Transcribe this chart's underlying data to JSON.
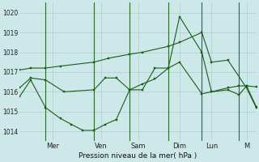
{
  "bg_color": "#cce8e8",
  "grid_color": "#b0cccc",
  "line_color": "#1a5c1a",
  "marker_color": "#1a5c1a",
  "xlabel": "Pression niveau de la mer( hPa )",
  "ylim": [
    1013.5,
    1020.5
  ],
  "yticks": [
    1014,
    1015,
    1016,
    1017,
    1018,
    1019,
    1020
  ],
  "day_labels": [
    "Mer",
    "Ven",
    "Sam",
    "Dim",
    "Lun",
    "M"
  ],
  "day_x": [
    45,
    110,
    160,
    215,
    258,
    305
  ],
  "vline_x": [
    35,
    100,
    148,
    200,
    245,
    295
  ],
  "series1": {
    "x": [
      0,
      15,
      35,
      55,
      100,
      120,
      148,
      165,
      200,
      215,
      245,
      258,
      280,
      305,
      318
    ],
    "y": [
      1017.1,
      1017.2,
      1017.2,
      1017.3,
      1017.5,
      1017.7,
      1017.9,
      1018.0,
      1018.3,
      1018.5,
      1019.0,
      1017.5,
      1017.6,
      1016.2,
      1015.2
    ]
  },
  "series2": {
    "x": [
      0,
      15,
      35,
      60,
      100,
      115,
      130,
      148,
      165,
      182,
      200,
      215,
      245,
      258,
      280,
      295,
      305,
      318
    ],
    "y": [
      1016.2,
      1016.7,
      1016.6,
      1016.0,
      1016.1,
      1016.7,
      1016.7,
      1016.1,
      1016.1,
      1017.2,
      1017.2,
      1019.8,
      1018.0,
      1016.0,
      1016.2,
      1016.3,
      1016.3,
      1016.25
    ]
  },
  "series3": {
    "x": [
      0,
      15,
      35,
      55,
      70,
      85,
      100,
      115,
      130,
      148,
      165,
      182,
      200,
      215,
      245,
      258,
      280,
      295,
      305,
      318
    ],
    "y": [
      1015.75,
      1016.6,
      1015.2,
      1014.65,
      1014.35,
      1014.05,
      1014.05,
      1014.35,
      1014.6,
      1016.1,
      1016.4,
      1016.65,
      1017.2,
      1017.5,
      1015.9,
      1016.0,
      1016.1,
      1015.85,
      1016.3,
      1015.25
    ]
  }
}
